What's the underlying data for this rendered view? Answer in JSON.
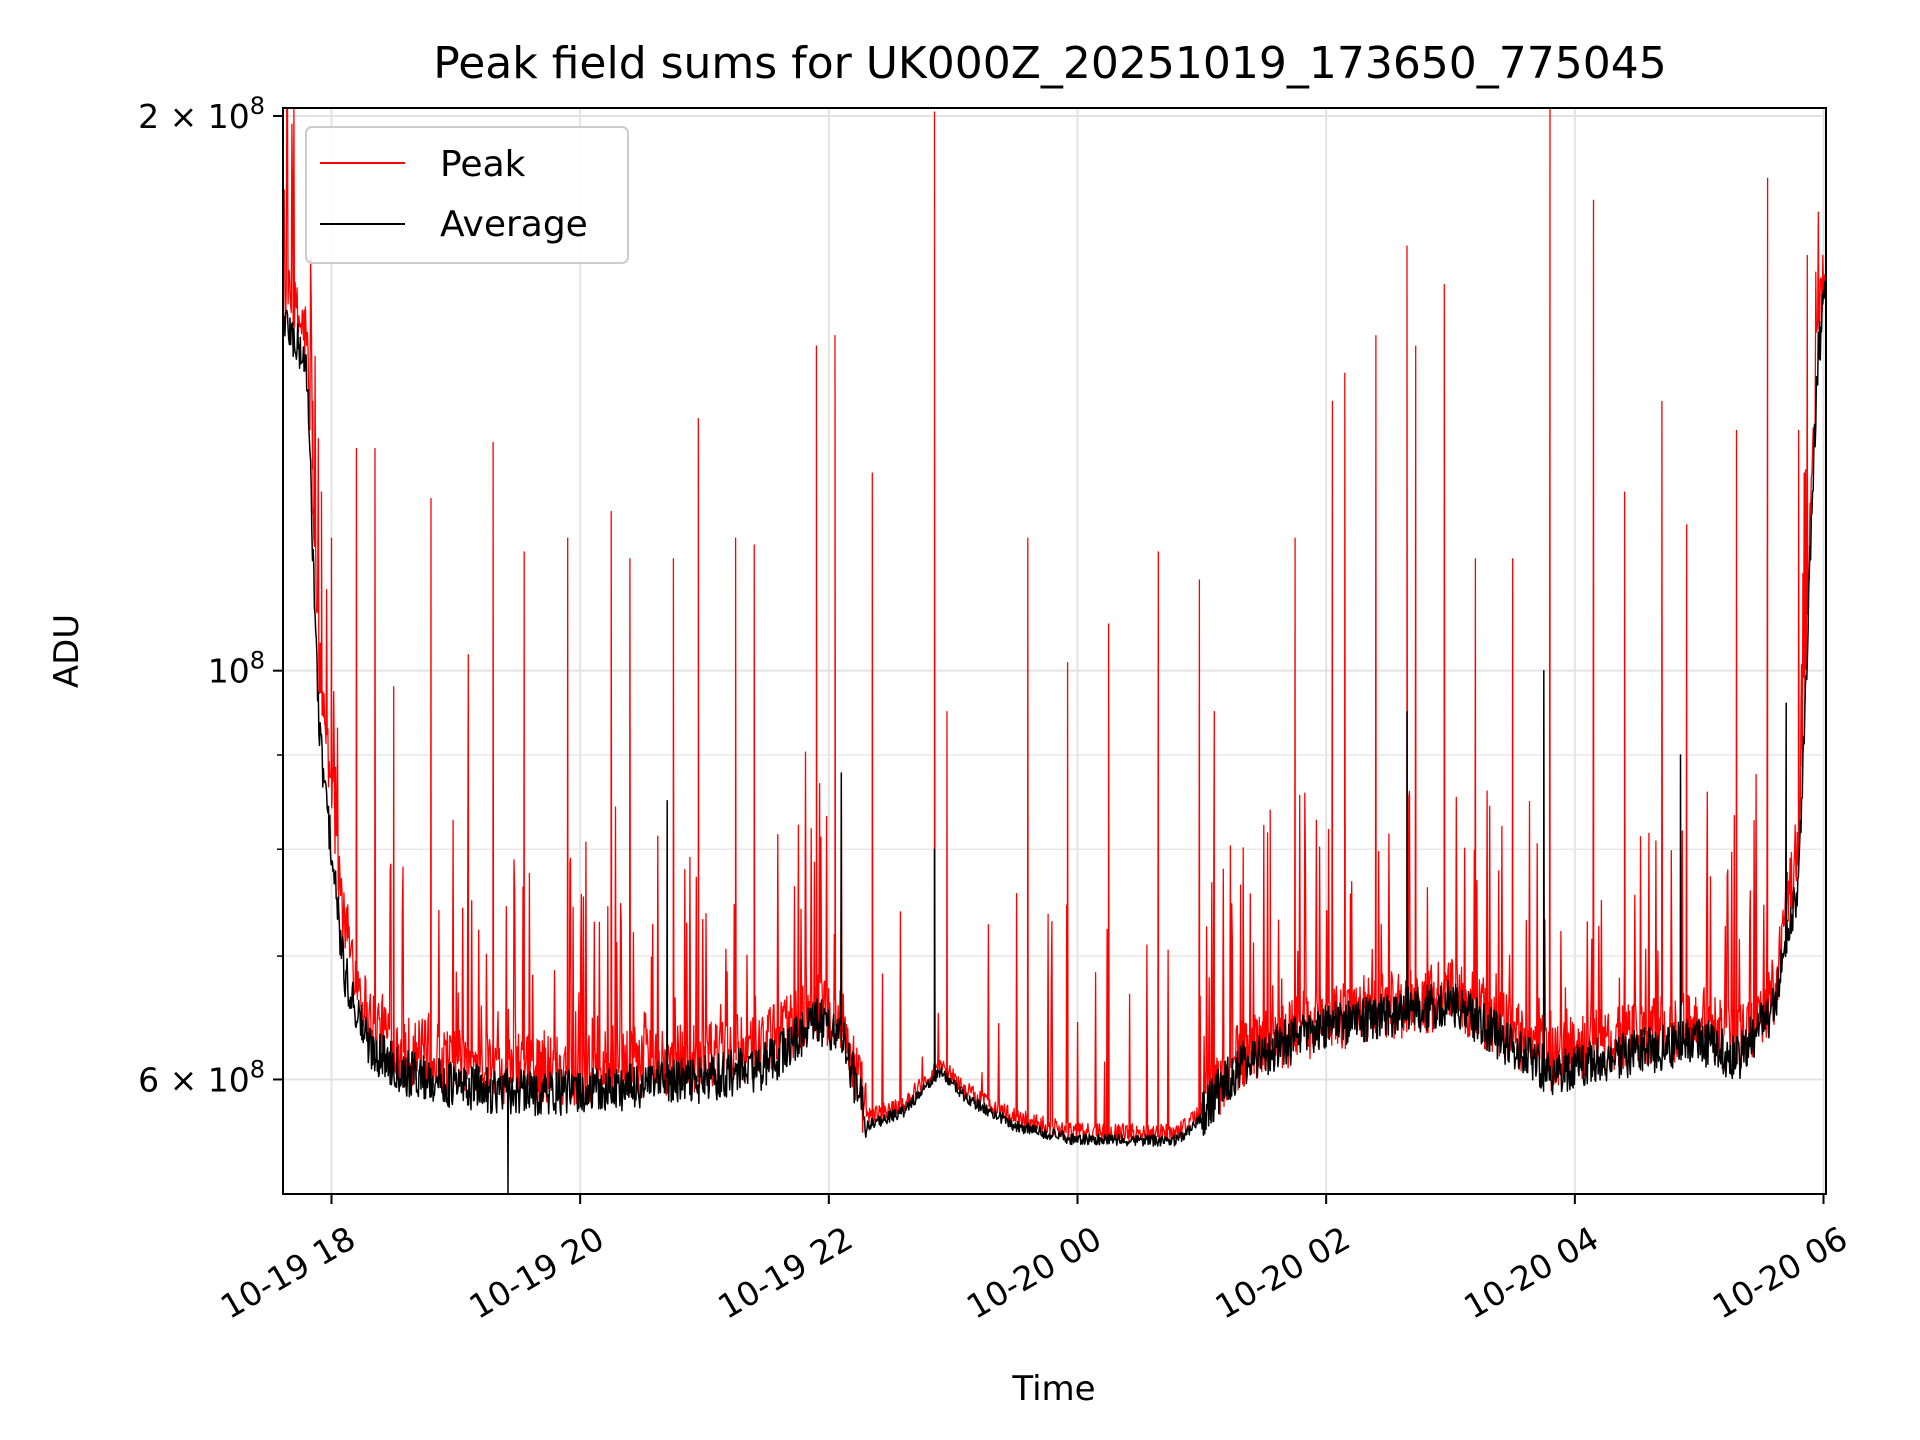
{
  "chart_data": {
    "type": "line",
    "title": "Peak field sums for UK000Z_20251019_173650_775045",
    "xlabel": "Time",
    "ylabel": "ADU",
    "yscale": "log",
    "ylim": [
      52000000,
      202000000
    ],
    "xlim_hours": [
      17.61,
      30.02
    ],
    "grid": true,
    "legend_position": "top-left",
    "x_ticks": [
      {
        "hour": 18,
        "label": "10-19 18"
      },
      {
        "hour": 20,
        "label": "10-19 20"
      },
      {
        "hour": 22,
        "label": "10-19 22"
      },
      {
        "hour": 24,
        "label": "10-20 00"
      },
      {
        "hour": 26,
        "label": "10-20 02"
      },
      {
        "hour": 28,
        "label": "10-20 04"
      },
      {
        "hour": 30,
        "label": "10-20 06"
      }
    ],
    "y_ticks": [
      {
        "value": 200000000,
        "mantissa": "2",
        "exponent": "8"
      },
      {
        "value": 100000000,
        "mantissa": "",
        "exponent": "8"
      },
      {
        "value": 60000000,
        "mantissa": "6",
        "exponent": "8"
      }
    ],
    "y_minor_ticks": [
      70000000,
      80000000,
      90000000
    ],
    "series": [
      {
        "name": "Peak",
        "color": "#ff0000",
        "baseline_hours": [
          17.62,
          17.8,
          17.9,
          18.1,
          18.3,
          18.6,
          19.0,
          19.5,
          20.0,
          20.5,
          21.0,
          21.5,
          21.9,
          22.1,
          22.3,
          22.6,
          22.9,
          23.1,
          23.5,
          24.0,
          24.5,
          24.8,
          25.0,
          25.3,
          25.6,
          26.0,
          26.5,
          27.0,
          27.5,
          27.8,
          28.0,
          28.5,
          29.0,
          29.3,
          29.6,
          29.8,
          29.95,
          30.02
        ],
        "baseline_values": [
          158000000,
          150000000,
          100000000,
          72000000,
          64000000,
          61500000,
          60500000,
          60000000,
          60000000,
          60500000,
          61000000,
          62000000,
          65000000,
          64000000,
          57000000,
          58000000,
          61000000,
          59000000,
          57000000,
          56000000,
          56000000,
          56000000,
          57500000,
          61000000,
          62500000,
          64000000,
          65000000,
          66000000,
          63000000,
          61000000,
          61500000,
          62500000,
          63500000,
          62000000,
          66000000,
          80000000,
          150000000,
          165000000
        ],
        "spike_hours": [
          17.85,
          17.92,
          18.0,
          18.2,
          18.35,
          18.5,
          18.8,
          19.1,
          19.3,
          19.55,
          19.9,
          20.25,
          20.4,
          20.75,
          20.95,
          21.25,
          21.4,
          21.9,
          22.05,
          22.35,
          22.85,
          22.95,
          23.6,
          23.92,
          24.25,
          24.65,
          24.98,
          25.1,
          25.55,
          25.75,
          26.05,
          26.15,
          26.4,
          26.65,
          26.72,
          26.95,
          27.2,
          27.5,
          27.8,
          28.15,
          28.4,
          28.7,
          28.9,
          29.3,
          29.55,
          29.8,
          29.87
        ],
        "spike_values": [
          140000000,
          125000000,
          118000000,
          132000000,
          132000000,
          98000000,
          124000000,
          102000000,
          133000000,
          116000000,
          118000000,
          122000000,
          115000000,
          115000000,
          137000000,
          118000000,
          117000000,
          150000000,
          152000000,
          128000000,
          201000000,
          95000000,
          118000000,
          101000000,
          106000000,
          116000000,
          112000000,
          95000000,
          84000000,
          118000000,
          140000000,
          145000000,
          152000000,
          170000000,
          150000000,
          162000000,
          115000000,
          115000000,
          203000000,
          180000000,
          125000000,
          140000000,
          120000000,
          135000000,
          185000000,
          135000000,
          168000000
        ]
      },
      {
        "name": "Average",
        "color": "#000000",
        "baseline_hours": [
          17.62,
          17.8,
          17.9,
          18.1,
          18.3,
          18.6,
          19.0,
          19.5,
          20.0,
          20.5,
          21.0,
          21.5,
          21.9,
          22.1,
          22.3,
          22.6,
          22.9,
          23.1,
          23.5,
          24.0,
          24.5,
          24.8,
          25.0,
          25.3,
          25.6,
          26.0,
          26.5,
          27.0,
          27.5,
          27.8,
          28.0,
          28.5,
          29.0,
          29.3,
          29.6,
          29.8,
          29.95,
          30.02
        ],
        "baseline_values": [
          154000000,
          145000000,
          92000000,
          68000000,
          62000000,
          60000000,
          59000000,
          58500000,
          58500000,
          59000000,
          59500000,
          60500000,
          64000000,
          63000000,
          56500000,
          57500000,
          60500000,
          58500000,
          56500000,
          55500000,
          55500000,
          55500000,
          57000000,
          60500000,
          62000000,
          63500000,
          64500000,
          65500000,
          62000000,
          60000000,
          60500000,
          61500000,
          62500000,
          61000000,
          65000000,
          76000000,
          145000000,
          162000000
        ],
        "spike_hours": [
          19.42,
          20.7,
          22.1,
          22.85,
          26.65,
          27.75,
          28.85,
          29.7
        ],
        "spike_values": [
          52000000,
          85000000,
          88000000,
          80000000,
          95000000,
          100000000,
          90000000,
          96000000
        ]
      }
    ]
  }
}
